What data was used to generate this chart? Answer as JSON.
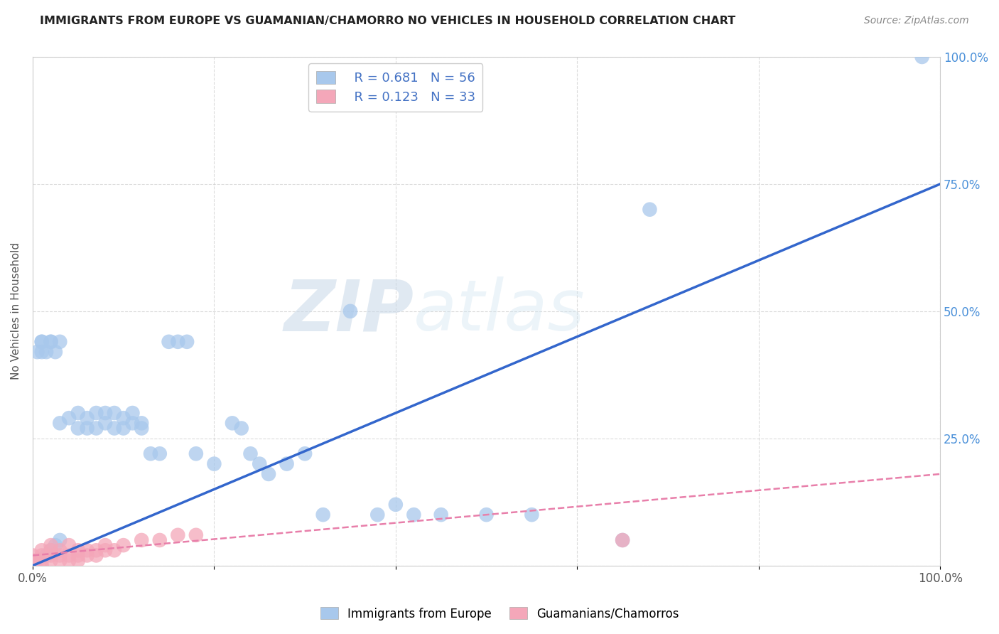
{
  "title": "IMMIGRANTS FROM EUROPE VS GUAMANIAN/CHAMORRO NO VEHICLES IN HOUSEHOLD CORRELATION CHART",
  "source": "Source: ZipAtlas.com",
  "ylabel": "No Vehicles in Household",
  "watermark": "ZIPatlas",
  "xlim": [
    0,
    1
  ],
  "ylim": [
    0,
    1
  ],
  "xticks": [
    0.0,
    0.2,
    0.4,
    0.6,
    0.8,
    1.0
  ],
  "yticks": [
    0.0,
    0.25,
    0.5,
    0.75,
    1.0
  ],
  "xticklabels": [
    "0.0%",
    "",
    "",
    "",
    "",
    "100.0%"
  ],
  "yticklabels": [
    "",
    "25.0%",
    "50.0%",
    "75.0%",
    "100.0%"
  ],
  "blue_R": 0.681,
  "blue_N": 56,
  "pink_R": 0.123,
  "pink_N": 33,
  "blue_color": "#A8C8EC",
  "pink_color": "#F4A7B9",
  "blue_line_color": "#3366CC",
  "pink_line_color": "#E87FAA",
  "legend_R_color": "#4472C4",
  "blue_line_x0": 0.0,
  "blue_line_y0": 0.0,
  "blue_line_x1": 1.0,
  "blue_line_y1": 0.75,
  "pink_line_x0": 0.0,
  "pink_line_y0": 0.02,
  "pink_line_x1": 1.0,
  "pink_line_y1": 0.18,
  "blue_scatter": [
    [
      0.005,
      0.42
    ],
    [
      0.01,
      0.44
    ],
    [
      0.015,
      0.42
    ],
    [
      0.02,
      0.44
    ],
    [
      0.025,
      0.42
    ],
    [
      0.03,
      0.28
    ],
    [
      0.04,
      0.29
    ],
    [
      0.05,
      0.27
    ],
    [
      0.05,
      0.3
    ],
    [
      0.06,
      0.27
    ],
    [
      0.06,
      0.29
    ],
    [
      0.07,
      0.27
    ],
    [
      0.07,
      0.3
    ],
    [
      0.08,
      0.28
    ],
    [
      0.08,
      0.3
    ],
    [
      0.09,
      0.27
    ],
    [
      0.09,
      0.3
    ],
    [
      0.1,
      0.27
    ],
    [
      0.1,
      0.29
    ],
    [
      0.11,
      0.28
    ],
    [
      0.11,
      0.3
    ],
    [
      0.12,
      0.27
    ],
    [
      0.12,
      0.28
    ],
    [
      0.13,
      0.22
    ],
    [
      0.14,
      0.22
    ],
    [
      0.15,
      0.44
    ],
    [
      0.16,
      0.44
    ],
    [
      0.17,
      0.44
    ],
    [
      0.18,
      0.22
    ],
    [
      0.2,
      0.2
    ],
    [
      0.22,
      0.28
    ],
    [
      0.23,
      0.27
    ],
    [
      0.24,
      0.22
    ],
    [
      0.25,
      0.2
    ],
    [
      0.26,
      0.18
    ],
    [
      0.28,
      0.2
    ],
    [
      0.3,
      0.22
    ],
    [
      0.32,
      0.1
    ],
    [
      0.35,
      0.5
    ],
    [
      0.38,
      0.1
    ],
    [
      0.4,
      0.12
    ],
    [
      0.42,
      0.1
    ],
    [
      0.45,
      0.1
    ],
    [
      0.5,
      0.1
    ],
    [
      0.55,
      0.1
    ],
    [
      0.01,
      0.42
    ],
    [
      0.01,
      0.44
    ],
    [
      0.65,
      0.05
    ],
    [
      0.98,
      1.0
    ],
    [
      0.68,
      0.7
    ],
    [
      0.02,
      0.44
    ],
    [
      0.03,
      0.44
    ],
    [
      0.015,
      0.02
    ],
    [
      0.02,
      0.03
    ],
    [
      0.025,
      0.04
    ],
    [
      0.03,
      0.05
    ]
  ],
  "pink_scatter": [
    [
      0.0,
      0.01
    ],
    [
      0.0,
      0.02
    ],
    [
      0.005,
      0.01
    ],
    [
      0.01,
      0.0
    ],
    [
      0.01,
      0.01
    ],
    [
      0.01,
      0.02
    ],
    [
      0.01,
      0.03
    ],
    [
      0.02,
      0.01
    ],
    [
      0.02,
      0.02
    ],
    [
      0.02,
      0.03
    ],
    [
      0.02,
      0.04
    ],
    [
      0.03,
      0.01
    ],
    [
      0.03,
      0.02
    ],
    [
      0.03,
      0.03
    ],
    [
      0.04,
      0.01
    ],
    [
      0.04,
      0.02
    ],
    [
      0.04,
      0.04
    ],
    [
      0.05,
      0.01
    ],
    [
      0.05,
      0.02
    ],
    [
      0.05,
      0.03
    ],
    [
      0.06,
      0.02
    ],
    [
      0.06,
      0.03
    ],
    [
      0.07,
      0.02
    ],
    [
      0.07,
      0.03
    ],
    [
      0.08,
      0.03
    ],
    [
      0.08,
      0.04
    ],
    [
      0.09,
      0.03
    ],
    [
      0.1,
      0.04
    ],
    [
      0.12,
      0.05
    ],
    [
      0.14,
      0.05
    ],
    [
      0.16,
      0.06
    ],
    [
      0.18,
      0.06
    ],
    [
      0.65,
      0.05
    ]
  ]
}
